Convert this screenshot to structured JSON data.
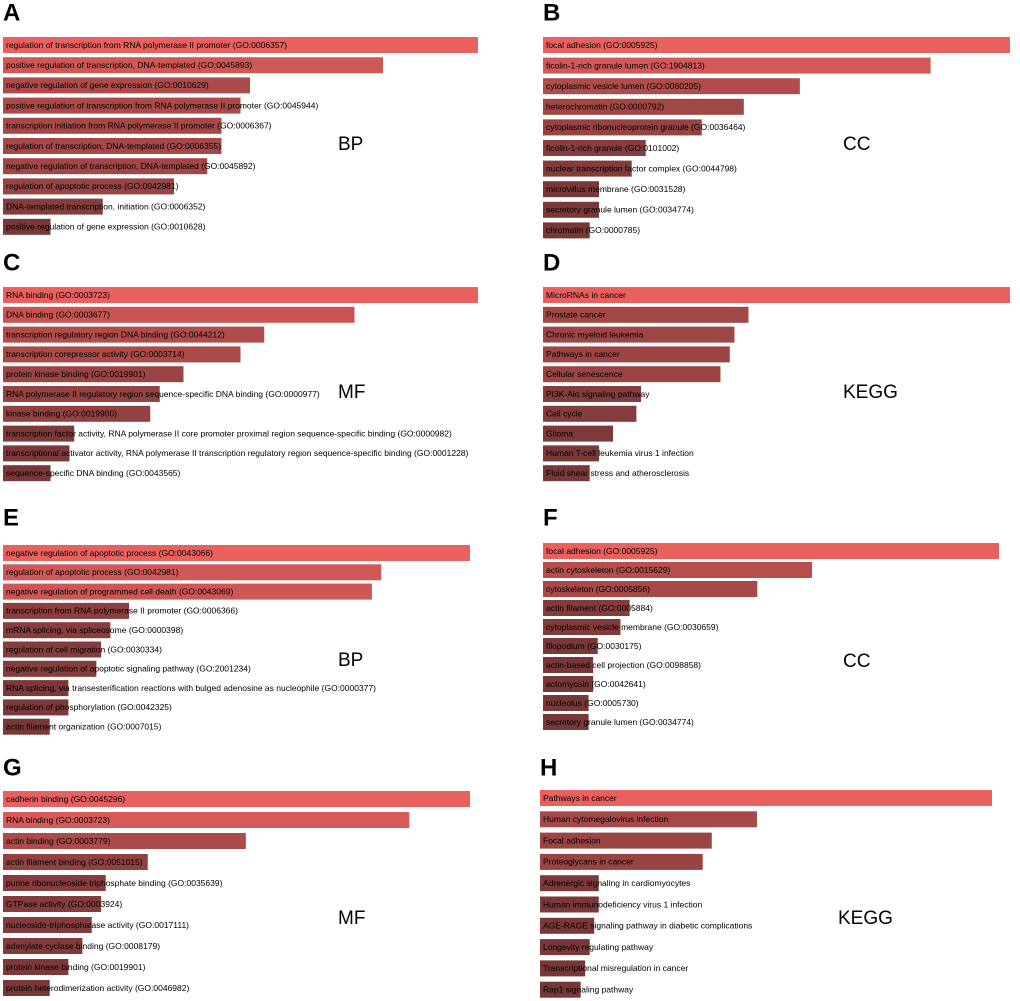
{
  "chart_data": [
    {
      "type": "bar",
      "panel": "A",
      "label": "BP",
      "xlim": [
        0,
        100
      ],
      "color_low": "#6b3333",
      "color_high": "#e8615f",
      "categories": [
        "regulation of transcription from RNA polymerase II promoter (GO:0006357)",
        "positive regulation of transcription, DNA-templated (GO:0045893)",
        "negative regulation of gene expression (GO:0010629)",
        "positive regulation of transcription from RNA polymerase II promoter (GO:0045944)",
        "transcription initiation from RNA polymerase II promoter (GO:0006367)",
        "regulation of transcription, DNA-templated (GO:0006355)",
        "negative regulation of transcription, DNA-templated (GO:0045892)",
        "regulation of apoptotic process (GO:0042981)",
        "DNA-templated transcription, initiation (GO:0006352)",
        "positive regulation of gene expression (GO:0010628)"
      ],
      "values": [
        100,
        80,
        52,
        50,
        46,
        46,
        43,
        36,
        21,
        10
      ]
    },
    {
      "type": "bar",
      "panel": "B",
      "label": "CC",
      "xlim": [
        0,
        100
      ],
      "color_low": "#6b3333",
      "color_high": "#e8615f",
      "categories": [
        "focal adhesion (GO:0005925)",
        "ficolin-1-rich granule lumen (GO:1904813)",
        "cytoplasmic vesicle lumen (GO:0060205)",
        "heterochromatin (GO:0000792)",
        "cytoplasmic ribonucleoprotein granule (GO:0036464)",
        "ficolin-1-rich granule (GO:0101002)",
        "nuclear transcription factor complex (GO:0044798)",
        "microvillus membrane (GO:0031528)",
        "secretory granule lumen (GO:0034774)",
        "chromatin (GO:0000785)"
      ],
      "values": [
        100,
        83,
        55,
        43,
        34,
        22,
        19,
        12,
        12,
        10
      ]
    },
    {
      "type": "bar",
      "panel": "C",
      "label": "MF",
      "xlim": [
        0,
        100
      ],
      "color_low": "#6b3333",
      "color_high": "#e8615f",
      "categories": [
        "RNA binding (GO:0003723)",
        "DNA binding (GO:0003677)",
        "transcription regulatory region DNA binding (GO:0044212)",
        "transcription corepressor activity (GO:0003714)",
        "protein kinase binding (GO:0019901)",
        "RNA polymerase II regulatory region sequence-specific DNA binding (GO:0000977)",
        "kinase binding (GO:0019900)",
        "transcription factor activity, RNA polymerase II core promoter proximal region sequence-specific binding (GO:0000982)",
        "transcriptional activator activity, RNA polymerase II transcription regulatory region sequence-specific binding (GO:0001228)",
        "sequence-specific DNA binding (GO:0043565)"
      ],
      "values": [
        100,
        74,
        55,
        50,
        38,
        33,
        31,
        15,
        14,
        10
      ]
    },
    {
      "type": "bar",
      "panel": "D",
      "label": "KEGG",
      "xlim": [
        0,
        100
      ],
      "color_low": "#6b3333",
      "color_high": "#e8615f",
      "categories": [
        "MicroRNAs in cancer",
        "Prostate cancer",
        "Chronic myeloid leukemia",
        "Pathways in cancer",
        "Cellular senescence",
        "PI3K-Akt signaling pathway",
        "Cell cycle",
        "Glioma",
        "Human T-cell leukemia virus 1 infection",
        "Fluid shear stress and atherosclerosis"
      ],
      "values": [
        100,
        44,
        41,
        40,
        38,
        21,
        20,
        15,
        12,
        10
      ]
    },
    {
      "type": "bar",
      "panel": "E",
      "label": "BP",
      "xlim": [
        0,
        100
      ],
      "color_low": "#6b3333",
      "color_high": "#e8615f",
      "categories": [
        "negative regulation of apoptotic process (GO:0043066)",
        "regulation of apoptotic process (GO:0042981)",
        "negative regulation of programmed cell death (GO:0043069)",
        "transcription from RNA polymerase II promoter (GO:0006366)",
        "mRNA splicing, via spliceosome (GO:0000398)",
        "regulation of cell migration (GO:0030334)",
        "negative regulation of apoptotic signaling pathway (GO:2001234)",
        "RNA splicing, via transesterification reactions with bulged adenosine as nucleophile (GO:0000377)",
        "regulation of phosphorylation (GO:0042325)",
        "actin filament organization (GO:0007015)"
      ],
      "values": [
        100,
        81,
        79,
        27,
        23,
        21,
        20,
        14,
        14,
        10
      ]
    },
    {
      "type": "bar",
      "panel": "F",
      "label": "CC",
      "xlim": [
        0,
        100
      ],
      "color_low": "#6b3333",
      "color_high": "#e8615f",
      "categories": [
        "focal adhesion (GO:0005925)",
        "actin cytoskeleton (GO:0015629)",
        "cytoskeleton (GO:0005856)",
        "actin filament (GO:0005884)",
        "cytoplasmic vesicle membrane (GO:0030659)",
        "filopodium (GO:0030175)",
        "actin-based cell projection (GO:0098858)",
        "actomyosin (GO:0042641)",
        "nucleolus (GO:0005730)",
        "secretory granule lumen (GO:0034774)"
      ],
      "values": [
        100,
        59,
        47,
        19,
        17,
        12,
        11,
        11,
        10,
        10
      ]
    },
    {
      "type": "bar",
      "panel": "G",
      "label": "MF",
      "xlim": [
        0,
        100
      ],
      "color_low": "#6b3333",
      "color_high": "#e8615f",
      "categories": [
        "cadherin binding (GO:0045296)",
        "RNA binding (GO:0003723)",
        "actin binding (GO:0003779)",
        "actin filament binding (GO:0051015)",
        "purine ribonucleoside triphosphate binding (GO:0035639)",
        "GTPase activity (GO:0003924)",
        "nucleoside-triphosphatase activity (GO:0017111)",
        "adenylate cyclase binding (GO:0008179)",
        "protein kinase binding (GO:0019901)",
        "protein heterodimerization activity (GO:0046982)"
      ],
      "values": [
        100,
        87,
        52,
        31,
        22,
        21,
        19,
        17,
        14,
        10
      ]
    },
    {
      "type": "bar",
      "panel": "H",
      "label": "KEGG",
      "xlim": [
        0,
        100
      ],
      "color_low": "#6b3333",
      "color_high": "#e8615f",
      "categories": [
        "Pathways in cancer",
        "Human cytomegalovirus infection",
        "Focal adhesion",
        "Proteoglycans in cancer",
        "Adrenergic signaling in cardiomyocytes",
        "Human immunodeficiency virus 1 infection",
        "AGE-RAGE signaling pathway in diabetic complications",
        "Longevity regulating pathway",
        "Transcriptional misregulation in cancer",
        "Rap1 signaling pathway"
      ],
      "values": [
        100,
        48,
        38,
        36,
        13,
        13,
        12,
        11,
        10,
        9
      ]
    }
  ]
}
